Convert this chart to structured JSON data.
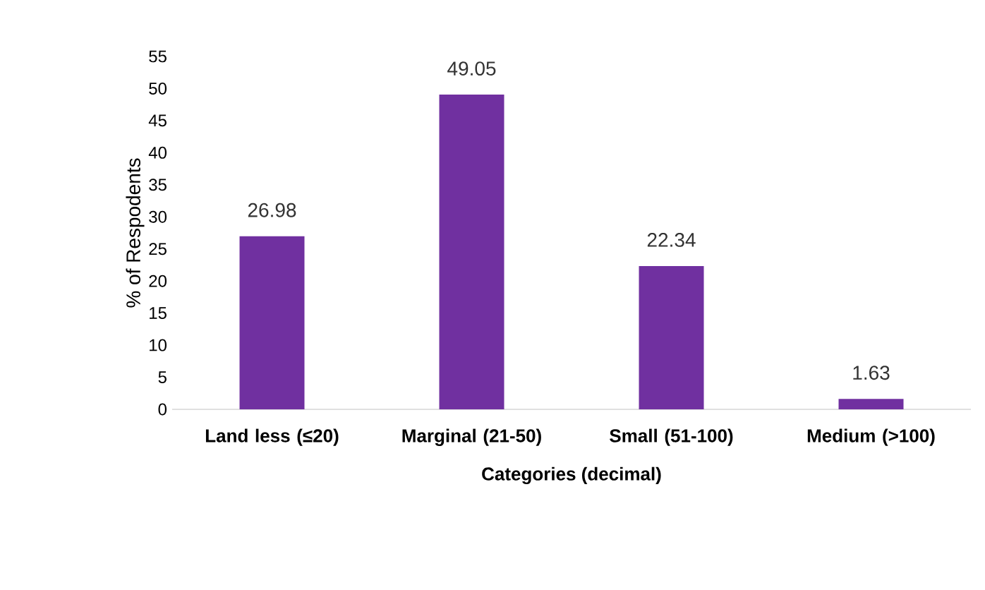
{
  "chart_data": {
    "type": "bar",
    "xlabel": "Categories (decimal)",
    "ylabel": "% of Respodents",
    "categories": [
      "Land less (≤20)",
      "Marginal (21-50)",
      "Small  (51-100)",
      "Medium (>100)"
    ],
    "values": [
      26.98,
      49.05,
      22.34,
      1.63
    ],
    "color": "#7030a0",
    "ylim": [
      0,
      55
    ],
    "yticks": [
      0,
      5,
      10,
      15,
      20,
      25,
      30,
      35,
      40,
      45,
      50,
      55
    ],
    "data_labels": true
  }
}
